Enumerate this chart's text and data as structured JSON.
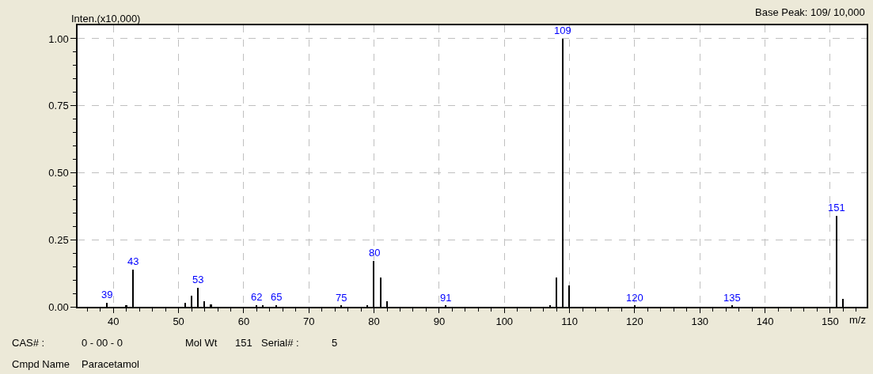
{
  "chart_data": {
    "type": "bar",
    "xlabel": "m/z",
    "ylabel": "Inten.(x10,000)",
    "x": [
      39,
      42,
      43,
      51,
      52,
      53,
      54,
      55,
      62,
      63,
      65,
      75,
      79,
      80,
      81,
      82,
      91,
      107,
      108,
      109,
      110,
      120,
      135,
      151,
      152
    ],
    "values": [
      0.015,
      0.005,
      0.14,
      0.015,
      0.04,
      0.07,
      0.02,
      0.01,
      0.005,
      0.005,
      0.005,
      0.003,
      0.005,
      0.17,
      0.11,
      0.02,
      0.003,
      0.005,
      0.11,
      1.0,
      0.08,
      0.003,
      0.003,
      0.34,
      0.03
    ],
    "color": "#000000",
    "xlim": [
      34.5,
      155.6
    ],
    "ylim": [
      0,
      1.05
    ],
    "xticks": [
      {
        "value": 36,
        "label": null
      },
      {
        "value": 38,
        "label": null
      },
      40,
      {
        "value": 42,
        "label": null
      },
      {
        "value": 44,
        "label": null
      },
      {
        "value": 46,
        "label": null
      },
      {
        "value": 48,
        "label": null
      },
      50,
      {
        "value": 52,
        "label": null
      },
      {
        "value": 54,
        "label": null
      },
      {
        "value": 56,
        "label": null
      },
      {
        "value": 58,
        "label": null
      },
      60,
      {
        "value": 62,
        "label": null
      },
      {
        "value": 64,
        "label": null
      },
      {
        "value": 66,
        "label": null
      },
      {
        "value": 68,
        "label": null
      },
      70,
      {
        "value": 72,
        "label": null
      },
      {
        "value": 74,
        "label": null
      },
      {
        "value": 76,
        "label": null
      },
      {
        "value": 78,
        "label": null
      },
      80,
      {
        "value": 82,
        "label": null
      },
      {
        "value": 84,
        "label": null
      },
      {
        "value": 86,
        "label": null
      },
      {
        "value": 88,
        "label": null
      },
      90,
      {
        "value": 92,
        "label": null
      },
      {
        "value": 94,
        "label": null
      },
      {
        "value": 96,
        "label": null
      },
      {
        "value": 98,
        "label": null
      },
      100,
      {
        "value": 102,
        "label": null
      },
      {
        "value": 104,
        "label": null
      },
      {
        "value": 106,
        "label": null
      },
      {
        "value": 108,
        "label": null
      },
      110,
      {
        "value": 112,
        "label": null
      },
      {
        "value": 114,
        "label": null
      },
      {
        "value": 116,
        "label": null
      },
      {
        "value": 118,
        "label": null
      },
      120,
      {
        "value": 122,
        "label": null
      },
      {
        "value": 124,
        "label": null
      },
      {
        "value": 126,
        "label": null
      },
      {
        "value": 128,
        "label": null
      },
      130,
      {
        "value": 132,
        "label": null
      },
      {
        "value": 134,
        "label": null
      },
      {
        "value": 136,
        "label": null
      },
      {
        "value": 138,
        "label": null
      },
      140,
      {
        "value": 142,
        "label": null
      },
      {
        "value": 144,
        "label": null
      },
      {
        "value": 146,
        "label": null
      },
      {
        "value": 148,
        "label": null
      },
      150,
      {
        "value": 152,
        "label": null
      },
      {
        "value": 154,
        "label": null
      }
    ],
    "yticks": [
      {
        "value": 0,
        "label": "0.00"
      },
      {
        "value": 0.05,
        "label": null
      },
      {
        "value": 0.1,
        "label": null
      },
      {
        "value": 0.15,
        "label": null
      },
      {
        "value": 0.2,
        "label": null
      },
      {
        "value": 0.25,
        "label": "0.25"
      },
      {
        "value": 0.3,
        "label": null
      },
      {
        "value": 0.35,
        "label": null
      },
      {
        "value": 0.4,
        "label": null
      },
      {
        "value": 0.45,
        "label": null
      },
      {
        "value": 0.5,
        "label": "0.50"
      },
      {
        "value": 0.55,
        "label": null
      },
      {
        "value": 0.6,
        "label": null
      },
      {
        "value": 0.65,
        "label": null
      },
      {
        "value": 0.7,
        "label": null
      },
      {
        "value": 0.75,
        "label": "0.75"
      },
      {
        "value": 0.8,
        "label": null
      },
      {
        "value": 0.85,
        "label": null
      },
      {
        "value": 0.9,
        "label": null
      },
      {
        "value": 0.95,
        "label": null
      },
      {
        "value": 1.0,
        "label": "1.00"
      }
    ],
    "grid": true,
    "annotations": [
      "Base Peak: 109/ 10,000",
      "CAS# :",
      "0 - 00 - 0",
      "Mol Wt",
      "151",
      "Serial# :",
      "5",
      "Cmpd Name",
      "Paracetamol",
      {
        "text": "39",
        "x": 39,
        "y": 0.015
      },
      {
        "text": "43",
        "x": 43,
        "y": 0.14
      },
      {
        "text": "53",
        "x": 53,
        "y": 0.07
      },
      {
        "text": "62",
        "x": 62,
        "y": 0.005
      },
      {
        "text": "65",
        "x": 65,
        "y": 0.005
      },
      {
        "text": "75",
        "x": 75,
        "y": 0.003
      },
      {
        "text": "80",
        "x": 80,
        "y": 0.17
      },
      {
        "text": "91",
        "x": 91,
        "y": 0.003
      },
      {
        "text": "109",
        "x": 109,
        "y": 1.0
      },
      {
        "text": "120",
        "x": 120,
        "y": 0.003
      },
      {
        "text": "135",
        "x": 135,
        "y": 0.003
      },
      {
        "text": "151",
        "x": 151,
        "y": 0.34
      }
    ]
  }
}
